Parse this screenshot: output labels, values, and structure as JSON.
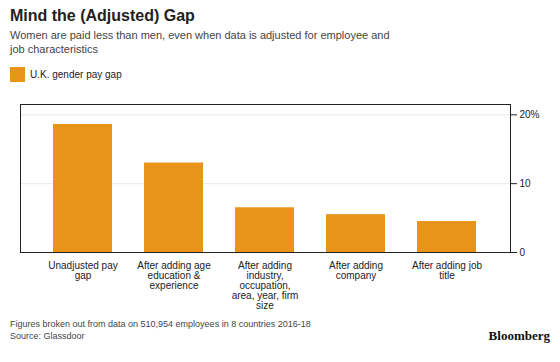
{
  "chart_data": {
    "type": "bar",
    "title": "Mind the (Adjusted) Gap",
    "subtitle": "Women are paid less than men, even when data is adjusted for employee and\njob characteristics",
    "categories": [
      "Unadjusted pay\ngap",
      "After adding age\neducation &\nexperience",
      "After adding\nindustry,\noccupation,\narea, year, firm\nsize",
      "After adding\ncompany",
      "After adding job\ntitle"
    ],
    "series": [
      {
        "name": "U.K. gender pay gap",
        "color": "#E8941A",
        "values": [
          18.6,
          13.0,
          6.5,
          5.5,
          4.5
        ]
      }
    ],
    "ylim": [
      0,
      21.5
    ],
    "yticks": [
      0,
      10,
      {
        "value": 20,
        "label": "20%"
      }
    ],
    "grid": true,
    "legend": "top",
    "footnotes": [
      "Figures broken out from data on 510,954 employees in 8 countries 2016-18",
      "Source: Glassdoor"
    ],
    "credit": "Bloomberg"
  }
}
